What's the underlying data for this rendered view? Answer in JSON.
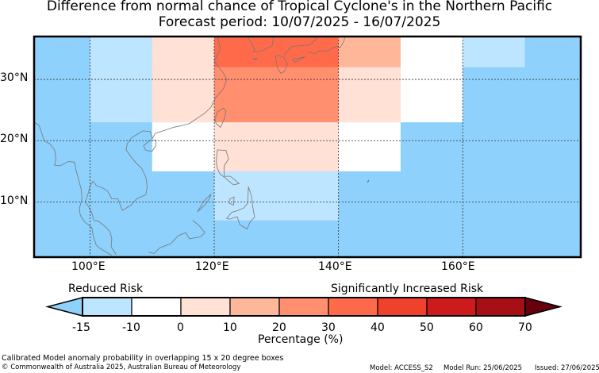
{
  "title": {
    "line1": "Difference from normal chance of Tropical Cyclone's in the Northern Pacific",
    "line2": "Forecast period: 10/07/2025 - 16/07/2025"
  },
  "map": {
    "lon_range": [
      91,
      179
    ],
    "lat_range": [
      1,
      37
    ],
    "y_ticks": [
      {
        "lat": 30,
        "label": "30°N"
      },
      {
        "lat": 20,
        "label": "20°N"
      },
      {
        "lat": 10,
        "label": "10°N"
      }
    ],
    "x_ticks": [
      {
        "lon": 100,
        "label": "100°E"
      },
      {
        "lon": 120,
        "label": "120°E"
      },
      {
        "lon": 140,
        "label": "140°E"
      },
      {
        "lon": 160,
        "label": "160°E"
      }
    ],
    "background_color": "#8ed1fc",
    "grid_style": "dotted"
  },
  "chart_data": {
    "type": "heatmap",
    "description_units": "percentage change in TC chance",
    "cells": [
      {
        "lon": [
          110,
          120
        ],
        "lat": [
          30,
          37
        ],
        "bin": "0-10"
      },
      {
        "lon": [
          120,
          140
        ],
        "lat": [
          30,
          37
        ],
        "bin": "30-40"
      },
      {
        "lon": [
          140,
          150
        ],
        "lat": [
          30,
          37
        ],
        "bin": "10-20"
      },
      {
        "lon": [
          150,
          160
        ],
        "lat": [
          30,
          37
        ],
        "bin": "-10-0"
      },
      {
        "lon": [
          160,
          170
        ],
        "lat": [
          32,
          37
        ],
        "bin": "-15--10"
      },
      {
        "lon": [
          100,
          110
        ],
        "lat": [
          23,
          37
        ],
        "bin": "-15--10"
      },
      {
        "lon": [
          110,
          120
        ],
        "lat": [
          23,
          30
        ],
        "bin": "0-10"
      },
      {
        "lon": [
          120,
          140
        ],
        "lat": [
          23,
          32
        ],
        "bin": "20-30"
      },
      {
        "lon": [
          140,
          150
        ],
        "lat": [
          23,
          32
        ],
        "bin": "0-10"
      },
      {
        "lon": [
          150,
          160
        ],
        "lat": [
          23,
          30
        ],
        "bin": "-10-0"
      },
      {
        "lon": [
          110,
          120
        ],
        "lat": [
          15,
          23
        ],
        "bin": "-10-0"
      },
      {
        "lon": [
          120,
          140
        ],
        "lat": [
          15,
          23
        ],
        "bin": "0-10"
      },
      {
        "lon": [
          140,
          150
        ],
        "lat": [
          15,
          23
        ],
        "bin": "-10-0"
      },
      {
        "lon": [
          120,
          140
        ],
        "lat": [
          7,
          15
        ],
        "bin": "-15--10"
      }
    ]
  },
  "legend": {
    "reduced_label": "Reduced Risk",
    "increased_label": "Significantly Increased Risk",
    "colors": [
      "#8ed1fc",
      "#bee5ff",
      "#ffffff",
      "#ffe1d6",
      "#ffb79a",
      "#ff8f6e",
      "#ff6b4a",
      "#f0412b",
      "#cc1a1d",
      "#a50f15",
      "#67000d"
    ],
    "tick_labels": [
      "-15",
      "-10",
      "0",
      "10",
      "20",
      "30",
      "40",
      "50",
      "60",
      "70"
    ],
    "axis_label": "Percentage (%)"
  },
  "footer": {
    "line1": "Calibrated Model anomaly probability in overlapping 15 x 20 degree boxes",
    "line2": "© Commonwealth of Australia 2025, Australian Bureau of Meteorology",
    "model": "Model: ACCESS_S2",
    "model_run": "Model Run: 25/06/2025",
    "issued": "Issued: 27/06/2025"
  }
}
